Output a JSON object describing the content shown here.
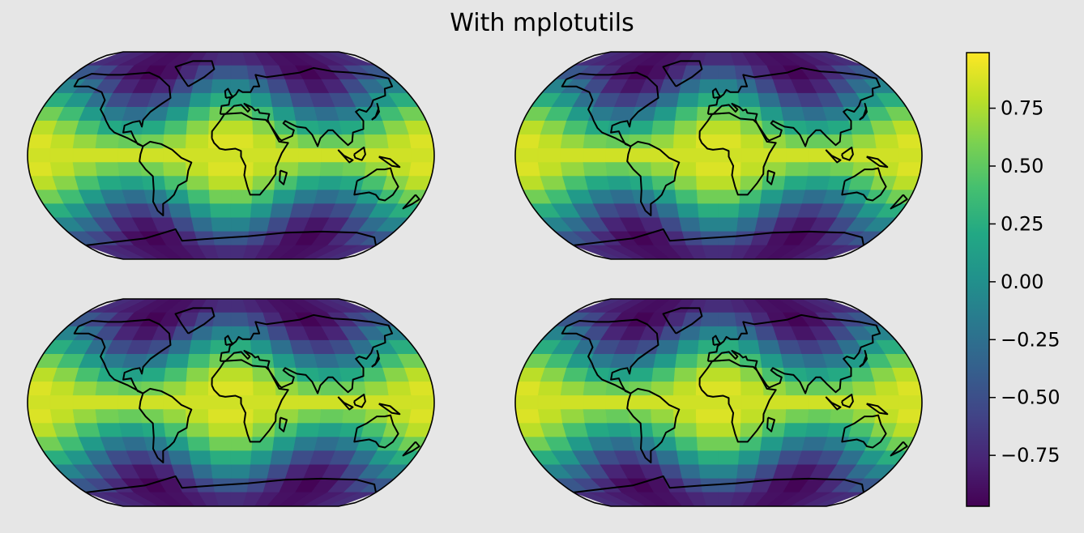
{
  "figure": {
    "title": "With mplotutils",
    "background": "#e6e6e6",
    "projection": "Robinson"
  },
  "maps": [
    {
      "name": "panel-top-left"
    },
    {
      "name": "panel-top-right"
    },
    {
      "name": "panel-bottom-left"
    },
    {
      "name": "panel-bottom-right"
    }
  ],
  "field": {
    "description_value_range": [
      -1,
      1
    ],
    "lon_cells": 18,
    "lat_cells": 15
  },
  "colorbar": {
    "colormap": "viridis",
    "vmin": -0.97,
    "vmax": 0.99,
    "ticks": [
      {
        "value": 0.75,
        "label": "0.75"
      },
      {
        "value": 0.5,
        "label": "0.50"
      },
      {
        "value": 0.25,
        "label": "0.25"
      },
      {
        "value": 0.0,
        "label": "0.00"
      },
      {
        "value": -0.25,
        "label": "−0.25"
      },
      {
        "value": -0.5,
        "label": "−0.50"
      },
      {
        "value": -0.75,
        "label": "−0.75"
      }
    ]
  },
  "colors": {
    "coastline": "#000000",
    "frame": "#000000"
  }
}
